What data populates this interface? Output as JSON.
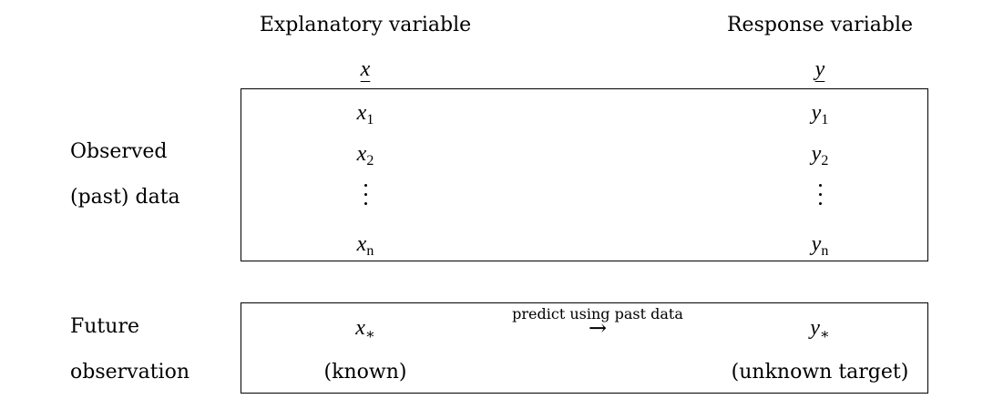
{
  "headers": {
    "explanatory": "Explanatory variable",
    "response": "Response variable",
    "x_symbol": "x",
    "y_symbol": "y"
  },
  "observed": {
    "label_line1": "Observed",
    "label_line2": "(past) data",
    "rows": [
      {
        "x": "x",
        "x_sub": "1",
        "y": "y",
        "y_sub": "1"
      },
      {
        "x": "x",
        "x_sub": "2",
        "y": "y",
        "y_sub": "2"
      },
      {
        "x": "x",
        "x_sub": "n",
        "y": "y",
        "y_sub": "n"
      }
    ]
  },
  "future": {
    "label_line1": "Future",
    "label_line2": "observation",
    "x": "x",
    "x_sub": "∗",
    "y": "y",
    "y_sub": "∗",
    "arrow_label": "predict using past data",
    "arrow": "→",
    "x_note": "(known)",
    "y_note": "(unknown target)"
  }
}
